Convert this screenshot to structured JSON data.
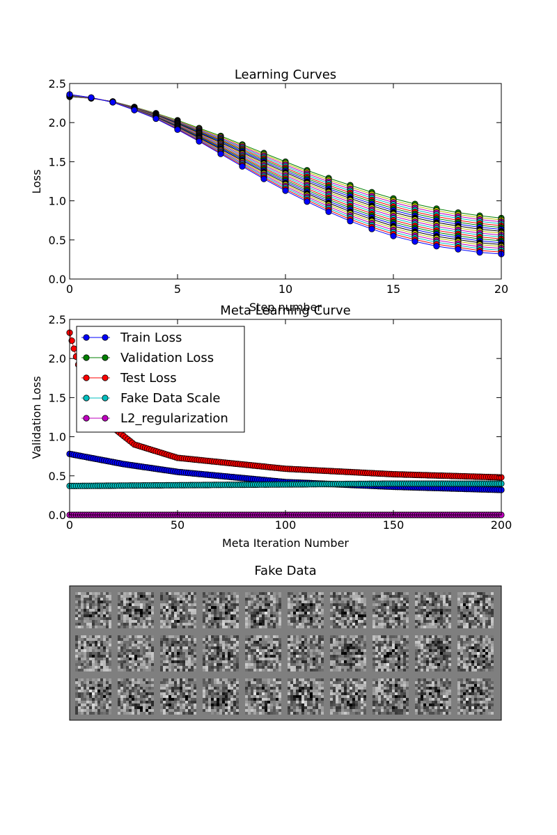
{
  "chart_data": [
    {
      "type": "line",
      "title": "Learning Curves",
      "xlabel": "Step number",
      "ylabel": "Loss",
      "xlim": [
        0,
        20
      ],
      "ylim": [
        0,
        2.5
      ],
      "xticks": [
        0,
        5,
        10,
        15,
        20
      ],
      "yticks": [
        0.0,
        0.5,
        1.0,
        1.5,
        2.0,
        2.5
      ],
      "xtick_labels": [
        "0",
        "5",
        "10",
        "15",
        "20"
      ],
      "ytick_labels": [
        "0.0",
        "0.5",
        "1.0",
        "1.5",
        "2.0",
        "2.5"
      ],
      "grid": false,
      "marker": "circle",
      "series_count": 20,
      "x": [
        0,
        1,
        2,
        3,
        4,
        5,
        6,
        7,
        8,
        9,
        10,
        11,
        12,
        13,
        14,
        15,
        16,
        17,
        18,
        19,
        20
      ],
      "series": [
        {
          "color": "#0000ff",
          "values": [
            2.36,
            2.32,
            2.26,
            2.16,
            2.05,
            1.91,
            1.76,
            1.6,
            1.44,
            1.28,
            1.13,
            0.99,
            0.86,
            0.74,
            0.64,
            0.55,
            0.48,
            0.42,
            0.38,
            0.34,
            0.32
          ]
        },
        {
          "color": "#008000",
          "values": [
            2.33,
            2.31,
            2.27,
            2.2,
            2.12,
            2.03,
            1.93,
            1.83,
            1.72,
            1.61,
            1.5,
            1.39,
            1.29,
            1.2,
            1.11,
            1.03,
            0.96,
            0.9,
            0.85,
            0.81,
            0.78
          ]
        }
      ]
    },
    {
      "type": "line",
      "title": "Meta Learning Curve",
      "xlabel": "Meta Iteration Number",
      "ylabel": "Validation Loss",
      "xlim": [
        0,
        200
      ],
      "ylim": [
        0,
        2.5
      ],
      "xticks": [
        0,
        50,
        100,
        150,
        200
      ],
      "yticks": [
        0.0,
        0.5,
        1.0,
        1.5,
        2.0,
        2.5
      ],
      "xtick_labels": [
        "0",
        "50",
        "100",
        "150",
        "200"
      ],
      "ytick_labels": [
        "0.0",
        "0.5",
        "1.0",
        "1.5",
        "2.0",
        "2.5"
      ],
      "grid": false,
      "legend_position": "upper-left",
      "marker": "circle",
      "series": [
        {
          "name": "Train Loss",
          "color": "#0000ff",
          "start": 0.78,
          "end": 0.32,
          "sample_x": [
            0,
            25,
            50,
            100,
            150,
            200
          ],
          "sample_values": [
            0.78,
            0.65,
            0.55,
            0.42,
            0.36,
            0.32
          ]
        },
        {
          "name": "Validation Loss",
          "color": "#008000",
          "start": 0.78,
          "end": 0.32,
          "sample_x": [
            0,
            25,
            50,
            100,
            150,
            200
          ],
          "sample_values": [
            0.78,
            0.65,
            0.55,
            0.42,
            0.36,
            0.32
          ]
        },
        {
          "name": "Test Loss",
          "color": "#ff0000",
          "start": 2.33,
          "end": 0.48,
          "sample_x": [
            0,
            5,
            10,
            20,
            30,
            50,
            100,
            150,
            200
          ],
          "sample_values": [
            2.33,
            1.82,
            1.55,
            1.12,
            0.9,
            0.73,
            0.59,
            0.52,
            0.48
          ]
        },
        {
          "name": "Fake Data Scale",
          "color": "#00bfbf",
          "start": 0.37,
          "end": 0.4,
          "sample_x": [
            0,
            50,
            100,
            150,
            200
          ],
          "sample_values": [
            0.37,
            0.38,
            0.39,
            0.4,
            0.4
          ]
        },
        {
          "name": "L2_regularization",
          "color": "#bf00bf",
          "start": 0.0,
          "end": 0.0,
          "sample_x": [
            0,
            200
          ],
          "sample_values": [
            0.0,
            0.0
          ]
        }
      ]
    },
    {
      "type": "heatmap",
      "title": "Fake Data",
      "rows": 3,
      "cols": 10,
      "colormap": "gray",
      "background": "#7f7f7f"
    }
  ]
}
